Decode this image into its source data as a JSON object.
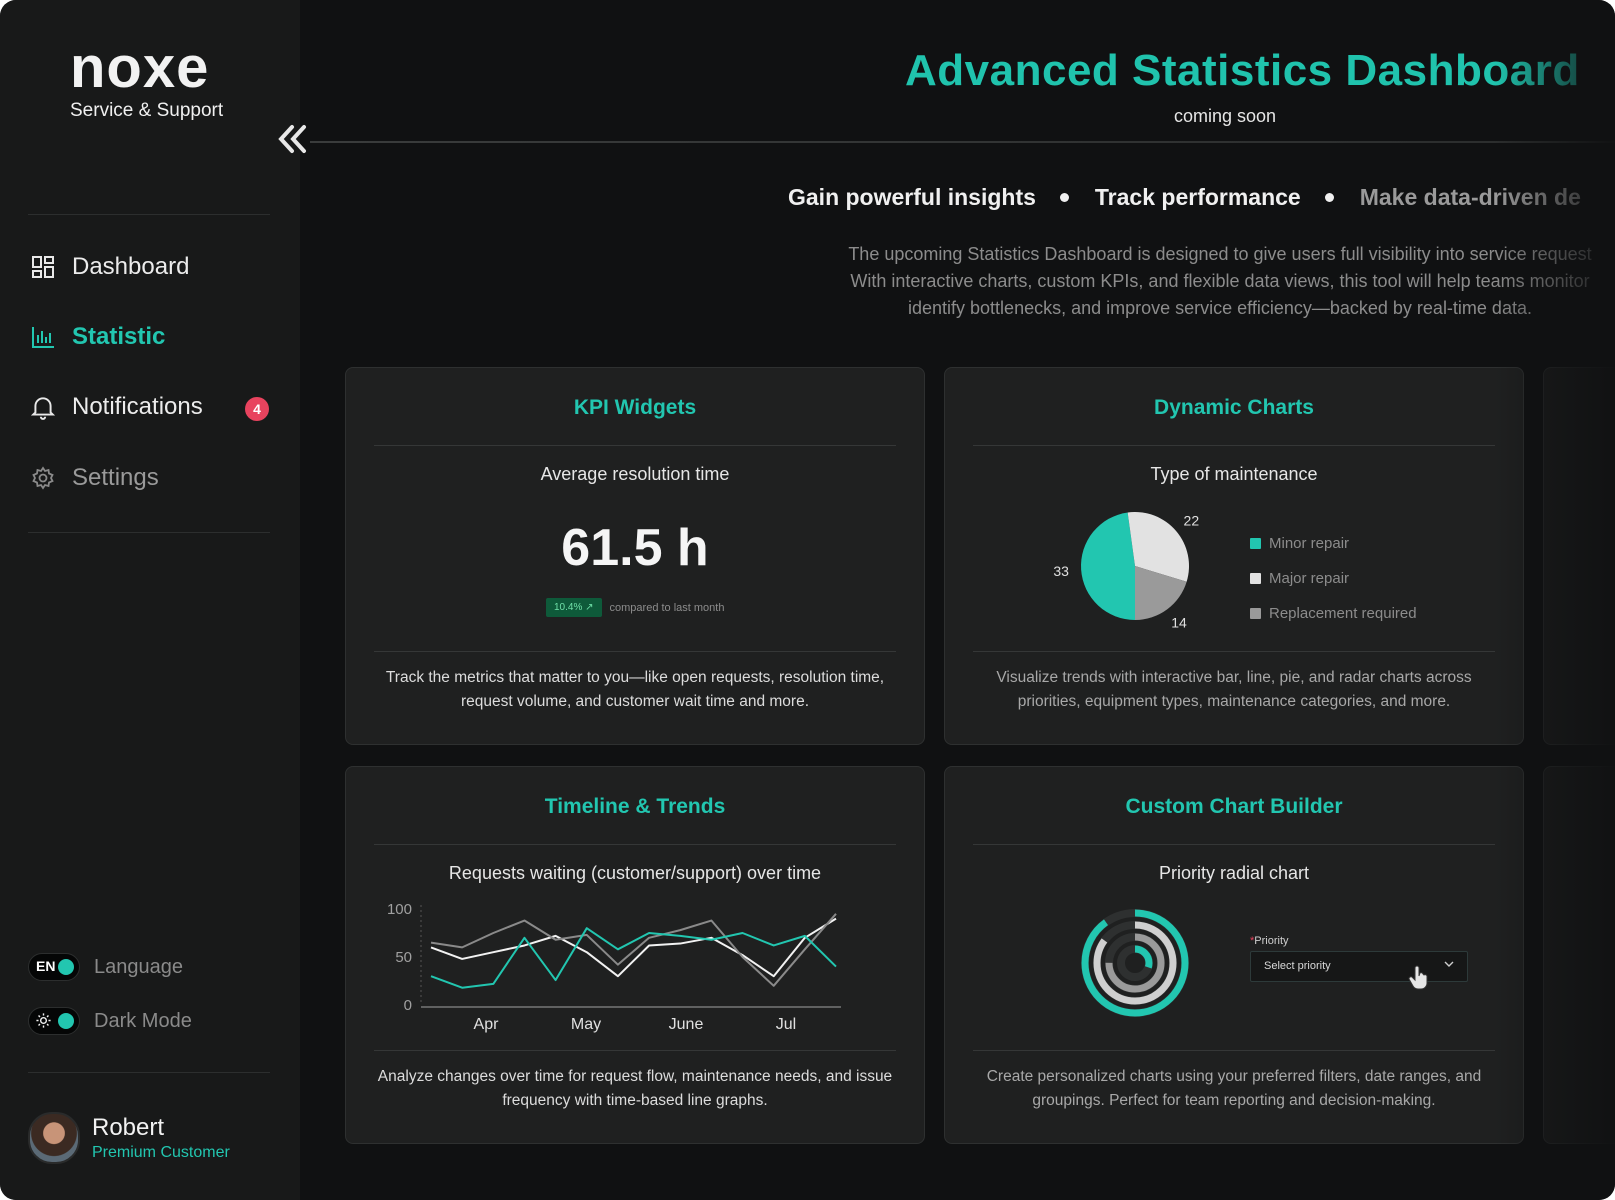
{
  "brand": {
    "logo": "noxe",
    "tagline": "Service & Support"
  },
  "sidebar": {
    "items": [
      {
        "label": "Dashboard"
      },
      {
        "label": "Statistic"
      },
      {
        "label": "Notifications",
        "badge": "4"
      },
      {
        "label": "Settings"
      }
    ],
    "language_toggle": {
      "value": "EN",
      "label": "Language"
    },
    "darkmode_toggle": {
      "label": "Dark Mode"
    },
    "user": {
      "name": "Robert",
      "role": "Premium Customer"
    }
  },
  "header": {
    "title": "Advanced Statistics Dashboard",
    "subtitle": "coming soon",
    "pills": [
      "Gain powerful insights",
      "Track performance",
      "Make data-driven de"
    ],
    "intro": [
      "The upcoming Statistics Dashboard is designed to give users full visibility into service request",
      "With interactive charts, custom KPIs, and flexible data views, this tool will help teams monitor",
      "identify bottlenecks, and improve service efficiency—backed by real-time data."
    ]
  },
  "cards": {
    "kpi": {
      "title": "KPI Widgets",
      "subtitle": "Average resolution time",
      "value": "61.5 h",
      "delta": "10.4% ↗",
      "compare": "compared to last month",
      "desc": "Track the metrics that matter to you—like open requests, resolution time, request volume, and customer wait time and more."
    },
    "dynamic": {
      "title": "Dynamic Charts",
      "subtitle": "Type of maintenance",
      "desc": "Visualize trends with interactive bar, line, pie, and radar charts across priorities, equipment types, maintenance categories, and more."
    },
    "timeline": {
      "title": "Timeline & Trends",
      "subtitle": "Requests waiting (customer/support) over time",
      "desc": "Analyze changes over time for request flow, maintenance needs, and issue frequency with time-based line graphs."
    },
    "custom": {
      "title": "Custom Chart Builder",
      "subtitle": "Priority radial chart",
      "field_label": "Priority",
      "select_placeholder": "Select priority",
      "desc": "Create personalized charts using your preferred filters, date ranges, and groupings. Perfect for team reporting and decision-making."
    }
  },
  "colors": {
    "accent": "#22c6b0",
    "badge": "#e8435e",
    "background": "#101112",
    "card": "#1f2020"
  },
  "chart_data": [
    {
      "type": "pie",
      "title": "Type of maintenance",
      "categories": [
        "Minor repair",
        "Major repair",
        "Replacement required"
      ],
      "values": [
        33,
        22,
        14
      ],
      "legend": "right"
    },
    {
      "type": "line",
      "title": "Requests waiting (customer/support) over time",
      "x_ticks": [
        "Apr",
        "May",
        "June",
        "Jul"
      ],
      "y_ticks": [
        0,
        50,
        100
      ],
      "ylim": [
        0,
        100
      ],
      "series": [
        {
          "values": [
            60,
            48,
            55,
            62,
            72,
            55,
            30,
            62,
            64,
            70,
            52,
            30,
            70,
            90
          ]
        },
        {
          "values": [
            65,
            60,
            75,
            88,
            68,
            73,
            42,
            70,
            78,
            88,
            50,
            20,
            58,
            95
          ]
        },
        {
          "values": [
            30,
            18,
            22,
            70,
            26,
            80,
            58,
            75,
            72,
            68,
            75,
            62,
            72,
            40
          ]
        }
      ]
    },
    {
      "type": "radial",
      "title": "Priority radial chart",
      "values": [
        0.3,
        0.75,
        0.85,
        0.9
      ]
    }
  ]
}
